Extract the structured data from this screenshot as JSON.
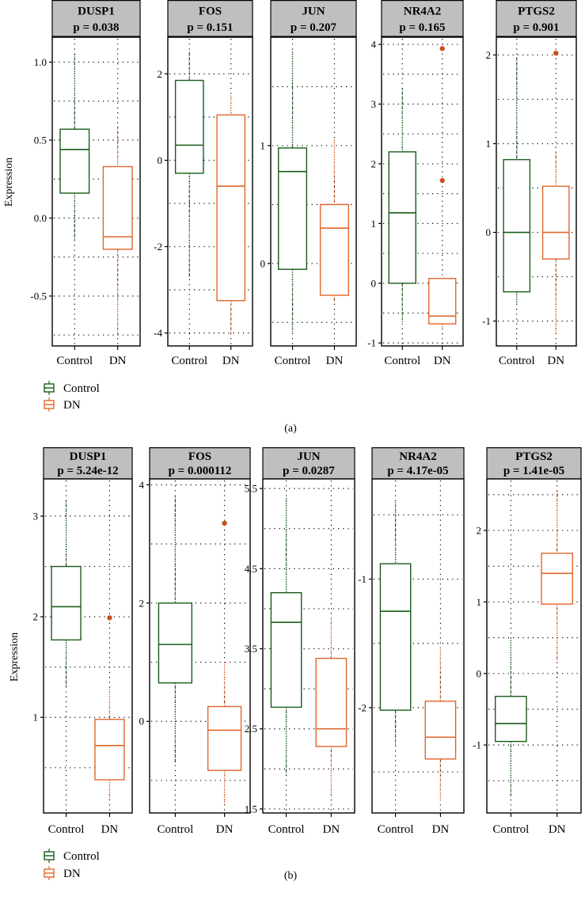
{
  "chart_data": [
    {
      "type": "boxplot",
      "caption": "(a)",
      "ylabel": "Expression",
      "categories": [
        "Control",
        "DN"
      ],
      "legend": [
        {
          "label": "Control",
          "color": "#1a5c1a"
        },
        {
          "label": "DN",
          "color": "#e0662a"
        }
      ],
      "panels": [
        {
          "gene": "DUSP1",
          "p_label": "p = 0.038",
          "ylim": [
            -0.82,
            1.16
          ],
          "ticks": [
            1.0,
            0.5,
            0.0,
            -0.5
          ],
          "tick_labels": [
            "1.0",
            "0.5",
            "0.0",
            "-0.5"
          ],
          "minor": [
            0.75,
            0.25,
            -0.25,
            -0.75
          ],
          "boxes": [
            {
              "group": "Control",
              "whisker_low": -0.14,
              "q1": 0.16,
              "median": 0.44,
              "q3": 0.57,
              "whisker_high": 1.05,
              "outliers": []
            },
            {
              "group": "DN",
              "whisker_low": -0.75,
              "q1": -0.2,
              "median": -0.12,
              "q3": 0.33,
              "whisker_high": 0.59,
              "outliers": []
            }
          ]
        },
        {
          "gene": "FOS",
          "p_label": "p = 0.151",
          "ylim": [
            -4.3,
            2.85
          ],
          "ticks": [
            2,
            0,
            -2,
            -4
          ],
          "tick_labels": [
            "2",
            "0",
            "-2",
            "-4"
          ],
          "minor": [
            1,
            -1,
            -3
          ],
          "boxes": [
            {
              "group": "Control",
              "whisker_low": -2.7,
              "q1": -0.3,
              "median": 0.35,
              "q3": 1.85,
              "whisker_high": 2.5,
              "outliers": []
            },
            {
              "group": "DN",
              "whisker_low": -4.0,
              "q1": -3.25,
              "median": -0.6,
              "q3": 1.05,
              "whisker_high": 1.5,
              "outliers": []
            }
          ]
        },
        {
          "gene": "JUN",
          "p_label": "p = 0.207",
          "ylim": [
            -0.7,
            1.92
          ],
          "ticks": [
            1,
            0
          ],
          "tick_labels": [
            "1",
            "0"
          ],
          "minor": [
            1.5,
            0.5,
            -0.5
          ],
          "boxes": [
            {
              "group": "Control",
              "whisker_low": -0.6,
              "q1": -0.05,
              "median": 0.78,
              "q3": 0.98,
              "whisker_high": 1.8,
              "outliers": []
            },
            {
              "group": "DN",
              "whisker_low": -0.32,
              "q1": -0.27,
              "median": 0.3,
              "q3": 0.5,
              "whisker_high": 1.05,
              "outliers": []
            }
          ]
        },
        {
          "gene": "NR4A2",
          "p_label": "p = 0.165",
          "ylim": [
            -1.05,
            4.12
          ],
          "ticks": [
            4,
            3,
            2,
            1,
            0,
            -1
          ],
          "tick_labels": [
            "4",
            "3",
            "2",
            "1",
            "0",
            "-1"
          ],
          "minor": [
            3.5,
            2.5,
            1.5,
            0.5,
            -0.5
          ],
          "boxes": [
            {
              "group": "Control",
              "whisker_low": -0.65,
              "q1": 0.0,
              "median": 1.18,
              "q3": 2.2,
              "whisker_high": 3.25,
              "outliers": []
            },
            {
              "group": "DN",
              "whisker_low": -0.8,
              "q1": -0.68,
              "median": -0.55,
              "q3": 0.08,
              "whisker_high": 0.08,
              "outliers": [
                1.72,
                3.93
              ]
            }
          ]
        },
        {
          "gene": "PTGS2",
          "p_label": "p = 0.901",
          "ylim": [
            -1.28,
            2.2
          ],
          "ticks": [
            2,
            1,
            0,
            -1
          ],
          "tick_labels": [
            "2",
            "1",
            "0",
            "-1"
          ],
          "minor": [
            1.5,
            0.5,
            -0.5
          ],
          "boxes": [
            {
              "group": "Control",
              "whisker_low": -0.82,
              "q1": -0.67,
              "median": 0.0,
              "q3": 0.82,
              "whisker_high": 1.97,
              "outliers": []
            },
            {
              "group": "DN",
              "whisker_low": -1.15,
              "q1": -0.3,
              "median": 0.0,
              "q3": 0.52,
              "whisker_high": 0.9,
              "outliers": [
                2.02
              ]
            }
          ]
        }
      ]
    },
    {
      "type": "boxplot",
      "caption": "(b)",
      "ylabel": "Expression",
      "categories": [
        "Control",
        "DN"
      ],
      "legend": [
        {
          "label": "Control",
          "color": "#1a5c1a"
        },
        {
          "label": "DN",
          "color": "#e0662a"
        }
      ],
      "panels": [
        {
          "gene": "DUSP1",
          "p_label": "p = 5.24e-12",
          "ylim": [
            0.05,
            3.37
          ],
          "ticks": [
            3,
            2,
            1
          ],
          "tick_labels": [
            "3",
            "2",
            "1"
          ],
          "minor": [
            2.5,
            1.5,
            0.5
          ],
          "boxes": [
            {
              "group": "Control",
              "whisker_low": 1.3,
              "q1": 1.77,
              "median": 2.1,
              "q3": 2.5,
              "whisker_high": 3.15,
              "outliers": []
            },
            {
              "group": "DN",
              "whisker_low": 0.18,
              "q1": 0.38,
              "median": 0.72,
              "q3": 0.98,
              "whisker_high": 1.28,
              "outliers": [
                1.99
              ]
            }
          ]
        },
        {
          "gene": "FOS",
          "p_label": "p = 0.000112",
          "ylim": [
            -1.55,
            4.1
          ],
          "ticks": [
            4,
            2,
            0
          ],
          "tick_labels": [
            "4",
            "2",
            "0"
          ],
          "minor": [
            3,
            1,
            -1
          ],
          "boxes": [
            {
              "group": "Control",
              "whisker_low": -0.7,
              "q1": 0.65,
              "median": 1.3,
              "q3": 2.0,
              "whisker_high": 3.8,
              "outliers": []
            },
            {
              "group": "DN",
              "whisker_low": -1.4,
              "q1": -0.83,
              "median": -0.15,
              "q3": 0.25,
              "whisker_high": 1.0,
              "outliers": [
                3.35
              ]
            }
          ]
        },
        {
          "gene": "JUN",
          "p_label": "p = 0.0287",
          "ylim": [
            1.45,
            5.62
          ],
          "ticks": [
            5.5,
            4.5,
            3.5,
            2.5,
            1.5
          ],
          "tick_labels": [
            "5.5",
            "4.5",
            "3.5",
            "2.5",
            "1.5"
          ],
          "minor": [
            5.0,
            4.0,
            3.0,
            2.0
          ],
          "boxes": [
            {
              "group": "Control",
              "whisker_low": 1.93,
              "q1": 2.77,
              "median": 3.83,
              "q3": 4.2,
              "whisker_high": 5.38,
              "outliers": []
            },
            {
              "group": "DN",
              "whisker_low": 1.65,
              "q1": 2.28,
              "median": 2.5,
              "q3": 3.38,
              "whisker_high": 3.88,
              "outliers": []
            }
          ]
        },
        {
          "gene": "NR4A2",
          "p_label": "p = 4.17e-05",
          "ylim": [
            -2.82,
            -0.22
          ],
          "ticks": [
            -1,
            -2
          ],
          "tick_labels": [
            "-1",
            "-2"
          ],
          "minor": [
            -0.5,
            -1.5,
            -2.5
          ],
          "boxes": [
            {
              "group": "Control",
              "whisker_low": -2.3,
              "q1": -2.02,
              "median": -1.25,
              "q3": -0.88,
              "whisker_high": -0.4,
              "outliers": []
            },
            {
              "group": "DN",
              "whisker_low": -2.73,
              "q1": -2.4,
              "median": -2.23,
              "q3": -1.95,
              "whisker_high": -1.53,
              "outliers": []
            }
          ]
        },
        {
          "gene": "PTGS2",
          "p_label": "p = 1.41e-05",
          "ylim": [
            -1.95,
            2.72
          ],
          "ticks": [
            2,
            1,
            0,
            -1
          ],
          "tick_labels": [
            "2",
            "1",
            "0",
            "-1"
          ],
          "minor": [
            2.5,
            1.5,
            0.5,
            -0.5,
            -1.5
          ],
          "boxes": [
            {
              "group": "Control",
              "whisker_low": -1.72,
              "q1": -0.95,
              "median": -0.7,
              "q3": -0.32,
              "whisker_high": 0.5,
              "outliers": []
            },
            {
              "group": "DN",
              "whisker_low": 0.18,
              "q1": 0.97,
              "median": 1.4,
              "q3": 1.68,
              "whisker_high": 2.55,
              "outliers": []
            }
          ]
        }
      ]
    }
  ]
}
